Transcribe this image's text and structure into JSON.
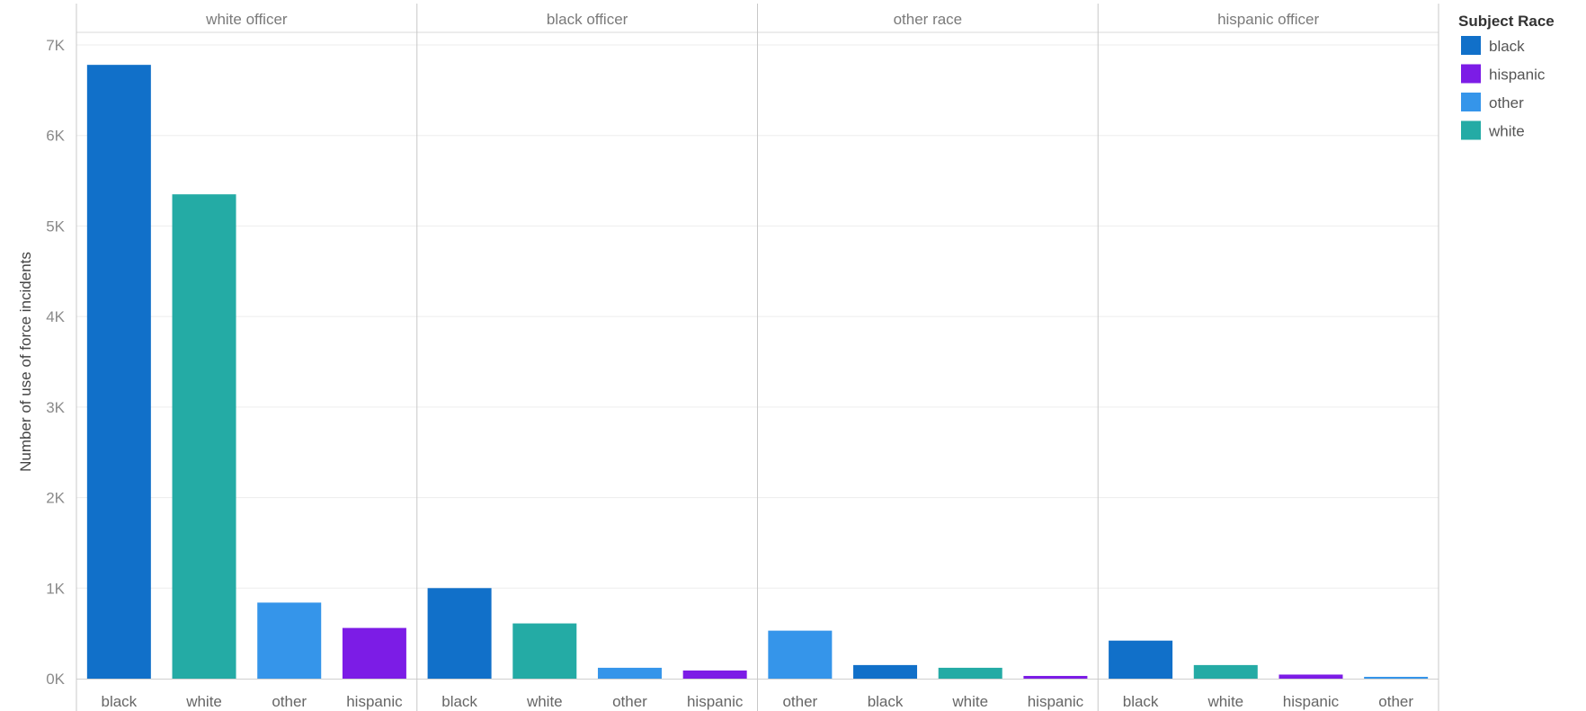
{
  "chart_data": {
    "type": "bar",
    "ylabel": "Number of use of force incidents",
    "ylim": [
      0,
      7000
    ],
    "yticks": [
      0,
      1000,
      2000,
      3000,
      4000,
      5000,
      6000,
      7000
    ],
    "ytick_labels": [
      "0K",
      "1K",
      "2K",
      "3K",
      "4K",
      "5K",
      "6K",
      "7K"
    ],
    "grid": true,
    "legend": {
      "title": "Subject Race",
      "position": "right",
      "entries": [
        {
          "name": "black",
          "color": "#1170C9"
        },
        {
          "name": "hispanic",
          "color": "#7C1CE6"
        },
        {
          "name": "other",
          "color": "#3595EA"
        },
        {
          "name": "white",
          "color": "#24ABA5"
        }
      ]
    },
    "facets": [
      {
        "title": "white officer",
        "categories": [
          "black",
          "white",
          "other",
          "hispanic"
        ],
        "values": [
          6780,
          5350,
          840,
          560
        ]
      },
      {
        "title": "black officer",
        "categories": [
          "black",
          "white",
          "other",
          "hispanic"
        ],
        "values": [
          1000,
          610,
          120,
          90
        ]
      },
      {
        "title": "other race",
        "categories": [
          "other",
          "black",
          "white",
          "hispanic"
        ],
        "values": [
          530,
          150,
          120,
          30
        ]
      },
      {
        "title": "hispanic officer",
        "categories": [
          "black",
          "white",
          "hispanic",
          "other"
        ],
        "values": [
          420,
          150,
          45,
          20
        ]
      }
    ]
  }
}
